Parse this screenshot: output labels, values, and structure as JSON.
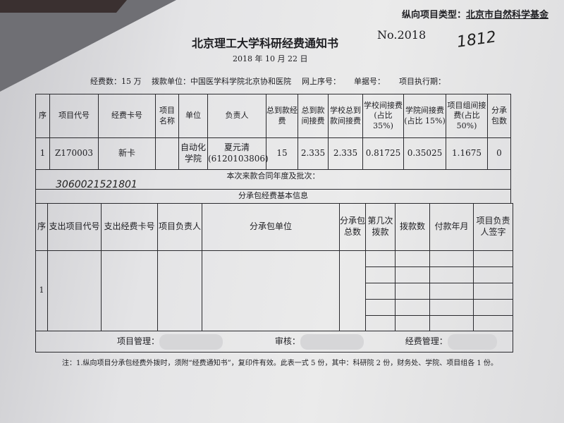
{
  "header": {
    "type_label": "纵向项目类型：",
    "type_value": "北京市自然科学基金",
    "title": "北京理工大学科研经费通知书",
    "no": "No.2018",
    "handwritten_no": "1812",
    "date": "2018 年 10 月 22 日"
  },
  "meta": {
    "funds": "经费数：15 万",
    "payer": "拨款单位：中国医学科学院北京协和医院",
    "online_no": "网上序号：",
    "doc_no": "单据号：",
    "period": "项目执行期："
  },
  "main_table": {
    "headers": [
      "序",
      "项目代号",
      "经费卡号",
      "项目名称",
      "单位",
      "负责人",
      "总到款经费",
      "总到款间接费",
      "学校总到款间接费",
      "学校间接费(占比 35%)",
      "学院间接费(占比 15%)",
      "项目组间接费(占比 50%)",
      "分承包数"
    ],
    "row": [
      "1",
      "Z170003",
      "新卡",
      "",
      "自动化学院",
      "夏元清(6120103806)",
      "15",
      "2.335",
      "2.335",
      "0.81725",
      "0.35025",
      "1.1675",
      "0"
    ],
    "contract_label": "本次来款合同年度及批次：",
    "contract_handwritten": "3060021521801",
    "sub_title": "分承包经费基本信息"
  },
  "sub_table": {
    "headers": [
      "序",
      "支出项目代号",
      "支出经费卡号",
      "项目负责人",
      "分承包单位",
      "分承包总数",
      "第几次拨款",
      "拨款数",
      "付款年月",
      "项目负责人签字"
    ],
    "row_no": "1"
  },
  "signatures": {
    "manager": "项目管理：",
    "review": "审核：",
    "finance": "经费管理："
  },
  "note": "注：1.纵向项目分承包经费外拨时，须附“经费通知书”，复印件有效。此表一式 5 份，其中：科研院 2 份，财务处、学院、项目组各 1 份。"
}
